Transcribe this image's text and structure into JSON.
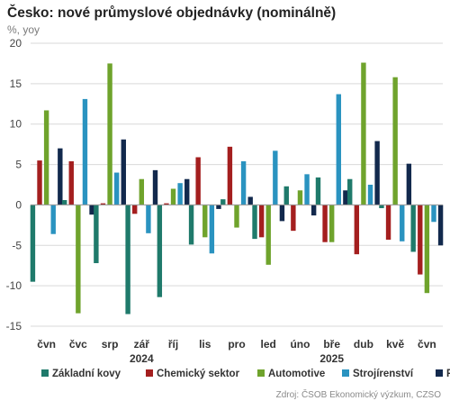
{
  "title": "Česko: nové průmyslové objednávky (nominálně)",
  "subtitle": "%, yoy",
  "source": "Zdroj: ČSOB Ekonomický výzkum, CZSO",
  "chart_data": {
    "type": "bar",
    "categories": [
      "čvn",
      "čvc",
      "srp",
      "zář",
      "říj",
      "lis",
      "pro",
      "led",
      "úno",
      "bře",
      "dub",
      "kvě",
      "čvn"
    ],
    "year_labels": [
      {
        "label": "2024",
        "category_index": 3
      },
      {
        "label": "2025",
        "category_index": 9
      }
    ],
    "ylim": [
      -15,
      20
    ],
    "yticks": [
      -15,
      -10,
      -5,
      0,
      5,
      10,
      15,
      20
    ],
    "grid": true,
    "legend_position": "bottom",
    "series": [
      {
        "name": "Základní kovy",
        "color": "#1f7a6b",
        "values": [
          -9.5,
          0.6,
          -7.2,
          -13.5,
          -11.4,
          -4.9,
          0.7,
          -4.2,
          2.3,
          3.4,
          3.2,
          -0.4,
          -5.8
        ]
      },
      {
        "name": "Chemický sektor",
        "color": "#a41f1f",
        "values": [
          5.5,
          5.4,
          0.2,
          -1.1,
          0.2,
          5.9,
          7.2,
          -4.0,
          -3.2,
          -4.6,
          -6.1,
          -4.3,
          -8.6
        ]
      },
      {
        "name": "Automotive",
        "color": "#6fa32c",
        "values": [
          11.7,
          -13.4,
          17.5,
          3.2,
          2.0,
          -4.0,
          -2.8,
          -7.4,
          1.8,
          -4.6,
          17.6,
          15.8,
          -10.9
        ]
      },
      {
        "name": "Strojírenství",
        "color": "#2a93c0",
        "values": [
          -3.6,
          13.1,
          4.0,
          -3.5,
          2.7,
          -6.0,
          5.4,
          6.7,
          3.8,
          13.7,
          2.5,
          -4.5,
          -2.1
        ]
      },
      {
        "name": "Průmysl",
        "color": "#12294d",
        "values": [
          7.0,
          -1.2,
          8.1,
          4.3,
          3.2,
          -0.5,
          1.0,
          -2.0,
          -1.3,
          1.8,
          7.9,
          5.1,
          -5.0
        ]
      }
    ]
  }
}
